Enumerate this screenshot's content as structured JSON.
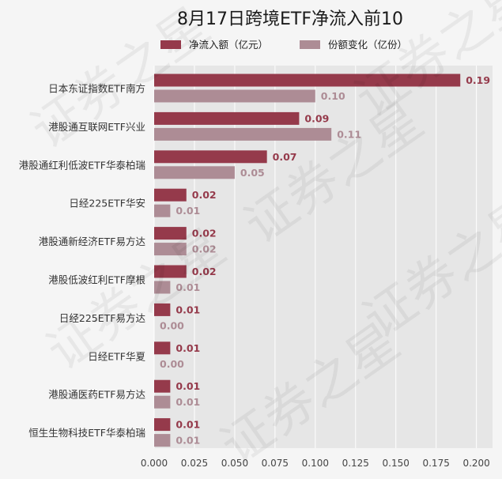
{
  "chart_data": {
    "type": "bar",
    "orientation": "horizontal",
    "title": "8月17日跨境ETF净流入前10",
    "categories": [
      "日本东证指数ETF南方",
      "港股通互联网ETF兴业",
      "港股通红利低波ETF华泰柏瑞",
      "日经225ETF华安",
      "港股通新经济ETF易方达",
      "港股低波红利ETF摩根",
      "日经225ETF易方达",
      "日经ETF华夏",
      "港股通医药ETF易方达",
      "恒生生物科技ETF华泰柏瑞"
    ],
    "series": [
      {
        "name": "净流入额（亿元）",
        "color": "#953a4b",
        "values": [
          0.19,
          0.09,
          0.07,
          0.02,
          0.02,
          0.02,
          0.01,
          0.01,
          0.01,
          0.01
        ],
        "labels": [
          "0.19",
          "0.09",
          "0.07",
          "0.02",
          "0.02",
          "0.02",
          "0.01",
          "0.01",
          "0.01",
          "0.01"
        ]
      },
      {
        "name": "份额变化（亿份）",
        "color": "#ad8c95",
        "values": [
          0.1,
          0.11,
          0.05,
          0.01,
          0.02,
          0.01,
          0.0,
          0.0,
          0.01,
          0.01
        ],
        "labels": [
          "0.10",
          "0.11",
          "0.05",
          "0.01",
          "0.02",
          "0.01",
          "0.00",
          "0.00",
          "0.01",
          "0.01"
        ]
      }
    ],
    "xlim": [
      0,
      0.21
    ],
    "xticks": [
      "0.000",
      "0.025",
      "0.050",
      "0.075",
      "0.100",
      "0.125",
      "0.150",
      "0.175",
      "0.200"
    ],
    "grid": true,
    "legend": "top",
    "background": "#e6e6e6",
    "watermark": "证券之星"
  }
}
